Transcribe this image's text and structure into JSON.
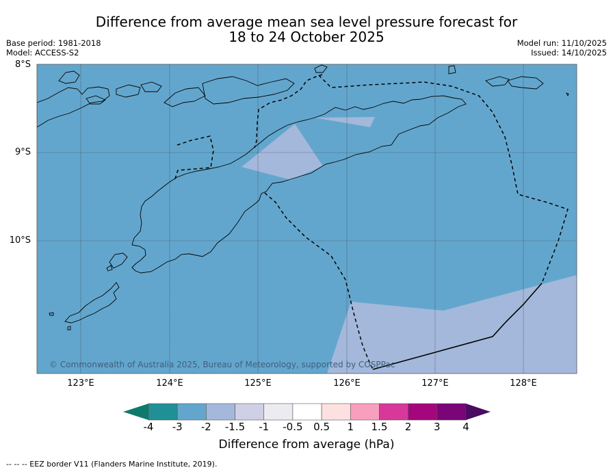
{
  "title_line1": "Difference from average mean sea level pressure forecast for",
  "title_line2": "18 to 24 October 2025",
  "base_period": "Base period: 1981-2018",
  "model": "Model: ACCESS-S2",
  "model_run": "Model run: 11/10/2025",
  "issued": "Issued: 14/10/2025",
  "lat_labels": [
    "8°S",
    "9°S",
    "10°S"
  ],
  "lon_labels": [
    "123°E",
    "124°E",
    "125°E",
    "126°E",
    "127°E",
    "128°E"
  ],
  "copyright": "© Commonwealth of Australia 2025, Bureau of Meteorology, supported by COSPPac",
  "colorbar": {
    "ticks": [
      "-4",
      "-3",
      "-2",
      "-1.5",
      "-1",
      "-0.5",
      "0.5",
      "1",
      "1.5",
      "2",
      "3",
      "4"
    ],
    "colors": [
      "#0e7a6b",
      "#1f9196",
      "#63a6cd",
      "#a3b8da",
      "#cfcfe6",
      "#ebebf0",
      "#ffffff",
      "#fde0e0",
      "#f89fbd",
      "#d8389a",
      "#a5067d",
      "#7a0478",
      "#4a0b62"
    ],
    "label": "Difference from average (hPa)"
  },
  "footnote": "--  --  -- EEZ border V11 (Flanders Marine Institute, 2019)."
}
